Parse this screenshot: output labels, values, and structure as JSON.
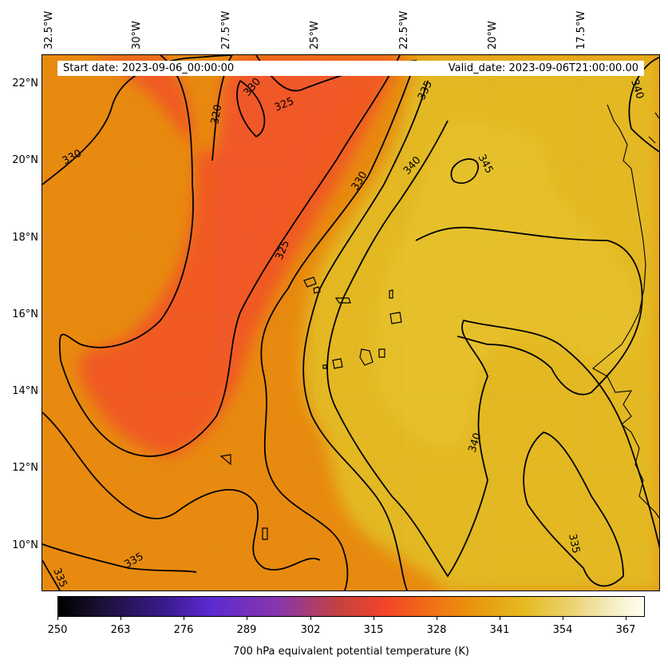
{
  "header": {
    "start_date": "Start date: 2023-09-06_00:00:00",
    "valid_date": "Valid_date: 2023-09-06T21:00:00.00"
  },
  "axes": {
    "lon_labels": [
      "32.5°W",
      "30°W",
      "27.5°W",
      "25°W",
      "22.5°W",
      "20°W",
      "17.5°W"
    ],
    "lat_labels": [
      "22°N",
      "20°N",
      "18°N",
      "16°N",
      "14°N",
      "12°N",
      "10°N"
    ]
  },
  "contour_labels": [
    "330",
    "320",
    "330",
    "325",
    "335",
    "340",
    "345",
    "330",
    "325",
    "340",
    "335",
    "335",
    "335",
    "340"
  ],
  "colorbar": {
    "ticks": [
      "250",
      "263",
      "276",
      "289",
      "302",
      "315",
      "328",
      "341",
      "354",
      "367"
    ],
    "label": "700 hPa equivalent potential temperature (K)",
    "range": [
      250,
      370
    ]
  },
  "colors": {
    "cool_region": "#f15a22",
    "mid_region": "#e88a10",
    "warm_region": "#e4bb22"
  }
}
